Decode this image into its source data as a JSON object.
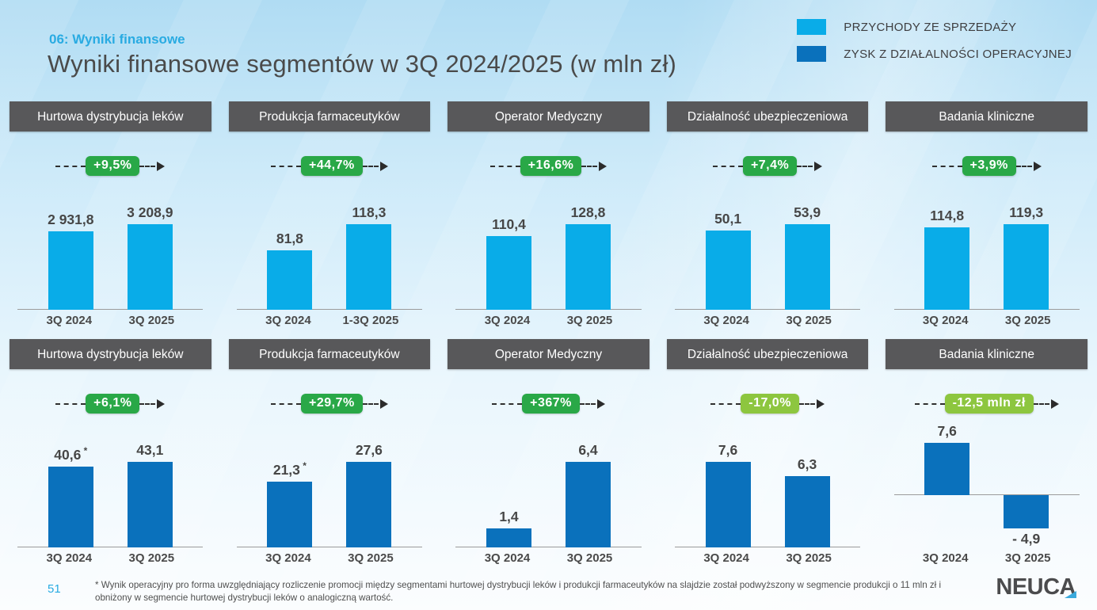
{
  "slide": {
    "kicker": "06: Wyniki finansowe",
    "title": "Wyniki finansowe segmentów w 3Q 2024/2025 (w mln zł)",
    "page_number": "51",
    "footnote": "* Wynik operacyjny pro forma uwzględniający rozliczenie promocji między segmentami hurtowej dystrybucji leków i produkcji farmaceutyków na slajdzie został podwyższony w segmencie produkcji o 11 mln zł i obniżony w segmencie hurtowej dystrybucji leków o analogiczną wartość.",
    "logo_text": "NEUCA"
  },
  "legend": {
    "items": [
      {
        "label": "PRZYCHODY ZE SPRZEDAŻY",
        "color": "#09ace8"
      },
      {
        "label": "ZYSK Z DZIAŁALNOŚCI OPERACYJNEJ",
        "color": "#0a71bc"
      }
    ]
  },
  "colors": {
    "revenue_bar": "#09ace8",
    "profit_bar": "#0a71bc",
    "badge_positive": "#29a847",
    "badge_negative": "#8dc63f",
    "accent": "#29abe2",
    "segment_header_bg": "#58585a"
  },
  "chart_data": [
    {
      "type": "bar",
      "row": "revenue",
      "segment": "Hurtowa dystrybucja leków",
      "change_badge": "+9,5%",
      "badge_variant": "positive",
      "categories": [
        "3Q 2024",
        "3Q 2025"
      ],
      "values": [
        2931.8,
        3208.9
      ],
      "value_labels": [
        "2 931,8",
        "3 208,9"
      ],
      "asterisk": [
        false,
        false
      ]
    },
    {
      "type": "bar",
      "row": "revenue",
      "segment": "Produkcja farmaceutyków",
      "change_badge": "+44,7%",
      "badge_variant": "positive",
      "categories": [
        "3Q 2024",
        "1-3Q 2025"
      ],
      "values": [
        81.8,
        118.3
      ],
      "value_labels": [
        "81,8",
        "118,3"
      ],
      "asterisk": [
        false,
        false
      ]
    },
    {
      "type": "bar",
      "row": "revenue",
      "segment": "Operator Medyczny",
      "change_badge": "+16,6%",
      "badge_variant": "positive",
      "categories": [
        "3Q 2024",
        "3Q 2025"
      ],
      "values": [
        110.4,
        128.8
      ],
      "value_labels": [
        "110,4",
        "128,8"
      ],
      "asterisk": [
        false,
        false
      ]
    },
    {
      "type": "bar",
      "row": "revenue",
      "segment": "Działalność ubezpieczeniowa",
      "change_badge": "+7,4%",
      "badge_variant": "positive",
      "categories": [
        "3Q 2024",
        "3Q 2025"
      ],
      "values": [
        50.1,
        53.9
      ],
      "value_labels": [
        "50,1",
        "53,9"
      ],
      "asterisk": [
        false,
        false
      ]
    },
    {
      "type": "bar",
      "row": "revenue",
      "segment": "Badania kliniczne",
      "change_badge": "+3,9%",
      "badge_variant": "positive",
      "categories": [
        "3Q 2024",
        "3Q 2025"
      ],
      "values": [
        114.8,
        119.3
      ],
      "value_labels": [
        "114,8",
        "119,3"
      ],
      "asterisk": [
        false,
        false
      ]
    },
    {
      "type": "bar",
      "row": "profit",
      "segment": "Hurtowa dystrybucja leków",
      "change_badge": "+6,1%",
      "badge_variant": "positive",
      "categories": [
        "3Q 2024",
        "3Q 2025"
      ],
      "values": [
        40.6,
        43.1
      ],
      "value_labels": [
        "40,6",
        "43,1"
      ],
      "asterisk": [
        true,
        false
      ]
    },
    {
      "type": "bar",
      "row": "profit",
      "segment": "Produkcja farmaceutyków",
      "change_badge": "+29,7%",
      "badge_variant": "positive",
      "categories": [
        "3Q 2024",
        "3Q 2025"
      ],
      "values": [
        21.3,
        27.6
      ],
      "value_labels": [
        "21,3",
        "27,6"
      ],
      "asterisk": [
        true,
        false
      ]
    },
    {
      "type": "bar",
      "row": "profit",
      "segment": "Operator Medyczny",
      "change_badge": "+367%",
      "badge_variant": "positive",
      "categories": [
        "3Q 2024",
        "3Q 2025"
      ],
      "values": [
        1.4,
        6.4
      ],
      "value_labels": [
        "1,4",
        "6,4"
      ],
      "asterisk": [
        false,
        false
      ]
    },
    {
      "type": "bar",
      "row": "profit",
      "segment": "Działalność ubezpieczeniowa",
      "change_badge": "-17,0%",
      "badge_variant": "negative",
      "categories": [
        "3Q 2024",
        "3Q 2025"
      ],
      "values": [
        7.6,
        6.3
      ],
      "value_labels": [
        "7,6",
        "6,3"
      ],
      "asterisk": [
        false,
        false
      ]
    },
    {
      "type": "bar",
      "row": "profit",
      "segment": "Badania kliniczne",
      "change_badge": "-12,5 mln zł",
      "badge_variant": "negative",
      "categories": [
        "3Q 2024",
        "3Q 2025"
      ],
      "values": [
        7.6,
        -4.9
      ],
      "value_labels": [
        "7,6",
        "- 4,9"
      ],
      "asterisk": [
        false,
        false
      ]
    }
  ]
}
